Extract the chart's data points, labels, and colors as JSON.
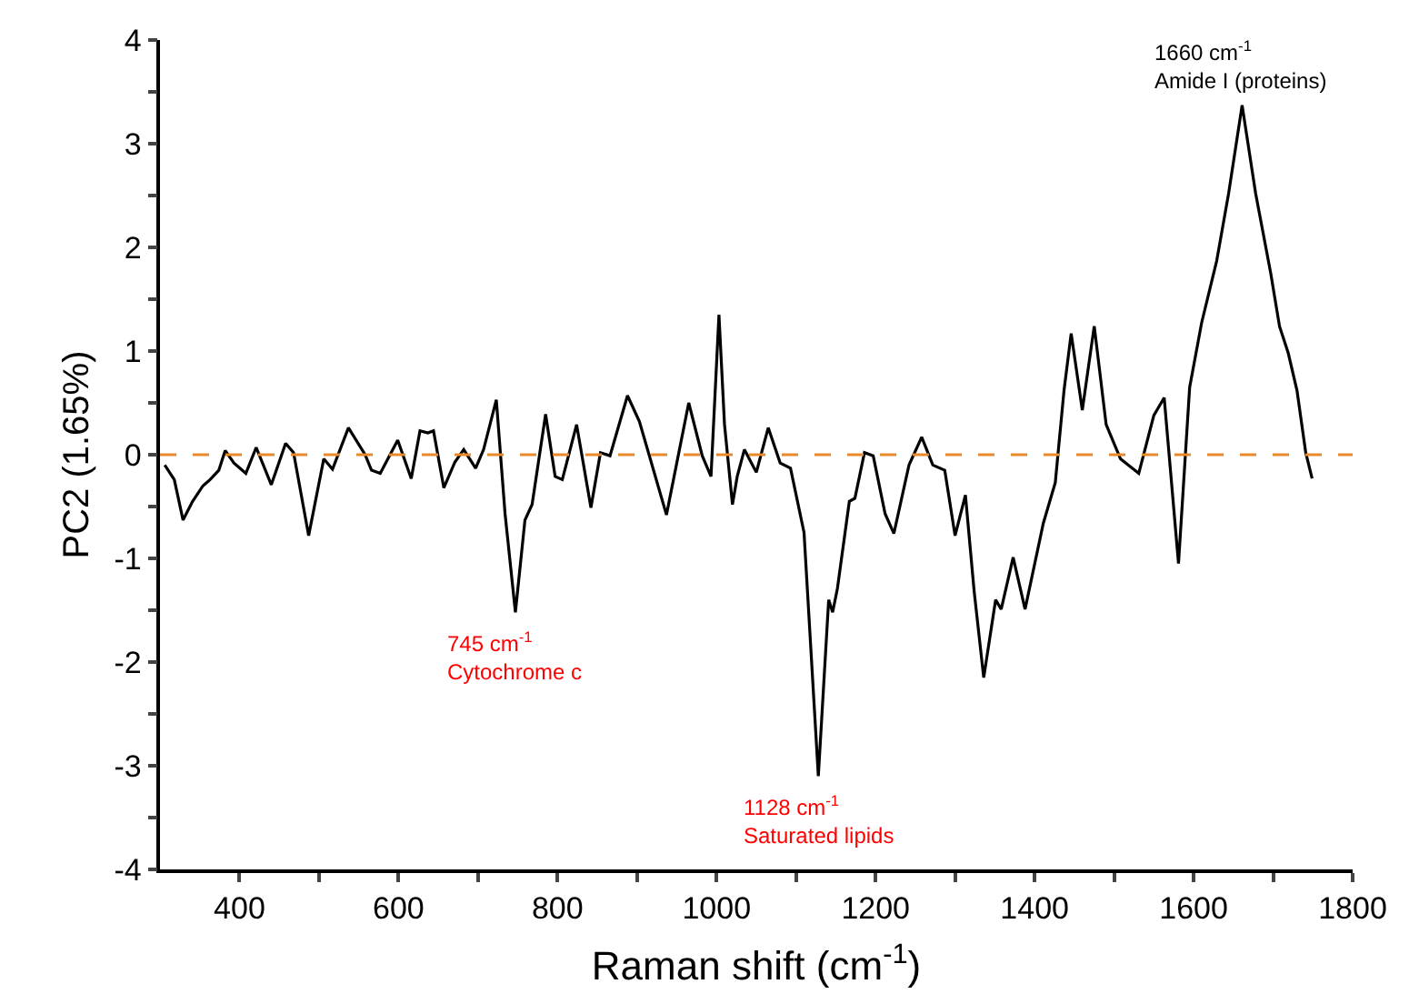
{
  "chart_data": {
    "type": "line",
    "xlabel": "Raman shift (cm$^{-1}$)",
    "ylabel": "PC2 (1.65%)",
    "xlim": [
      300,
      1800
    ],
    "ylim": [
      -4,
      4
    ],
    "xticks": [
      400,
      {
        "value": 500,
        "label": null
      },
      600,
      {
        "value": 700,
        "label": null
      },
      800,
      {
        "value": 900,
        "label": null
      },
      1000,
      {
        "value": 1100,
        "label": null
      },
      1200,
      {
        "value": 1300,
        "label": null
      },
      1400,
      {
        "value": 1500,
        "label": null
      },
      1600,
      {
        "value": 1700,
        "label": null
      },
      1800
    ],
    "yticks": [
      -4,
      {
        "value": -3.5,
        "label": null
      },
      -3,
      {
        "value": -2.5,
        "label": null
      },
      -2,
      {
        "value": -1.5,
        "label": null
      },
      -1,
      {
        "value": -0.5,
        "label": null
      },
      0,
      {
        "value": 0.5,
        "label": null
      },
      1,
      {
        "value": 1.5,
        "label": null
      },
      2,
      {
        "value": 2.5,
        "label": null
      },
      3,
      {
        "value": 3.5,
        "label": null
      },
      4
    ],
    "marker": "none",
    "line_style": "solid",
    "series": [
      {
        "color": "#000000",
        "x": [
          306,
          318,
          329,
          341,
          354,
          363,
          374,
          382,
          393,
          408,
          421,
          440,
          458,
          468,
          487,
          506,
          517,
          537,
          558,
          566,
          577,
          599,
          616,
          627,
          637,
          644,
          657,
          671,
          682,
          697,
          707,
          723,
          734,
          747,
          759,
          768,
          785,
          797,
          806,
          824,
          842,
          854,
          866,
          888,
          903,
          937,
          965,
          982,
          993,
          1003,
          1010,
          1020,
          1026,
          1035,
          1050,
          1065,
          1080,
          1093,
          1110,
          1128,
          1141,
          1146,
          1152,
          1167,
          1174,
          1186,
          1197,
          1212,
          1223,
          1242,
          1258,
          1272,
          1287,
          1300,
          1313,
          1324,
          1336,
          1351,
          1358,
          1373,
          1388,
          1411,
          1426,
          1437,
          1446,
          1460,
          1475,
          1490,
          1508,
          1531,
          1550,
          1563,
          1581,
          1595,
          1610,
          1629,
          1644,
          1661,
          1678,
          1697,
          1708,
          1719,
          1730,
          1741,
          1749
        ],
        "values": [
          -0.1,
          -0.24,
          -0.63,
          -0.45,
          -0.3,
          -0.24,
          -0.15,
          0.04,
          -0.08,
          -0.18,
          0.07,
          -0.29,
          0.11,
          0.02,
          -0.78,
          -0.04,
          -0.14,
          0.26,
          0.0,
          -0.15,
          -0.18,
          0.14,
          -0.23,
          0.23,
          0.21,
          0.23,
          -0.32,
          -0.07,
          0.05,
          -0.13,
          0.05,
          0.53,
          -0.57,
          -1.52,
          -0.63,
          -0.48,
          0.39,
          -0.21,
          -0.24,
          0.29,
          -0.51,
          0.02,
          -0.01,
          0.57,
          0.32,
          -0.58,
          0.5,
          -0.01,
          -0.21,
          1.35,
          0.29,
          -0.48,
          -0.21,
          0.05,
          -0.17,
          0.26,
          -0.08,
          -0.13,
          -0.75,
          -3.1,
          -1.4,
          -1.52,
          -1.29,
          -0.45,
          -0.42,
          0.02,
          -0.01,
          -0.57,
          -0.76,
          -0.1,
          0.17,
          -0.1,
          -0.15,
          -0.78,
          -0.39,
          -1.32,
          -2.15,
          -1.4,
          -1.49,
          -0.99,
          -1.49,
          -0.66,
          -0.27,
          0.62,
          1.17,
          0.43,
          1.24,
          0.29,
          -0.04,
          -0.18,
          0.38,
          0.55,
          -1.05,
          0.65,
          1.27,
          1.87,
          2.52,
          3.37,
          2.52,
          1.75,
          1.24,
          0.98,
          0.62,
          0.02,
          -0.23
        ]
      }
    ],
    "ref_lines": [
      {
        "axis": "y",
        "value": 0,
        "color": "#e8892b",
        "line_style": "dashed"
      }
    ],
    "annotations": [
      {
        "text": "745 cm$^{-1}$\nCytochrome c",
        "x": 745,
        "y": -1.52
      },
      {
        "text": "1128 cm$^{-1}$\nSaturated lipids",
        "x": 1128,
        "y": -3.1
      },
      {
        "text": "1660 cm$^{-1}$\nAmide I (proteins)",
        "x": 1660,
        "y": 3.37
      }
    ]
  }
}
